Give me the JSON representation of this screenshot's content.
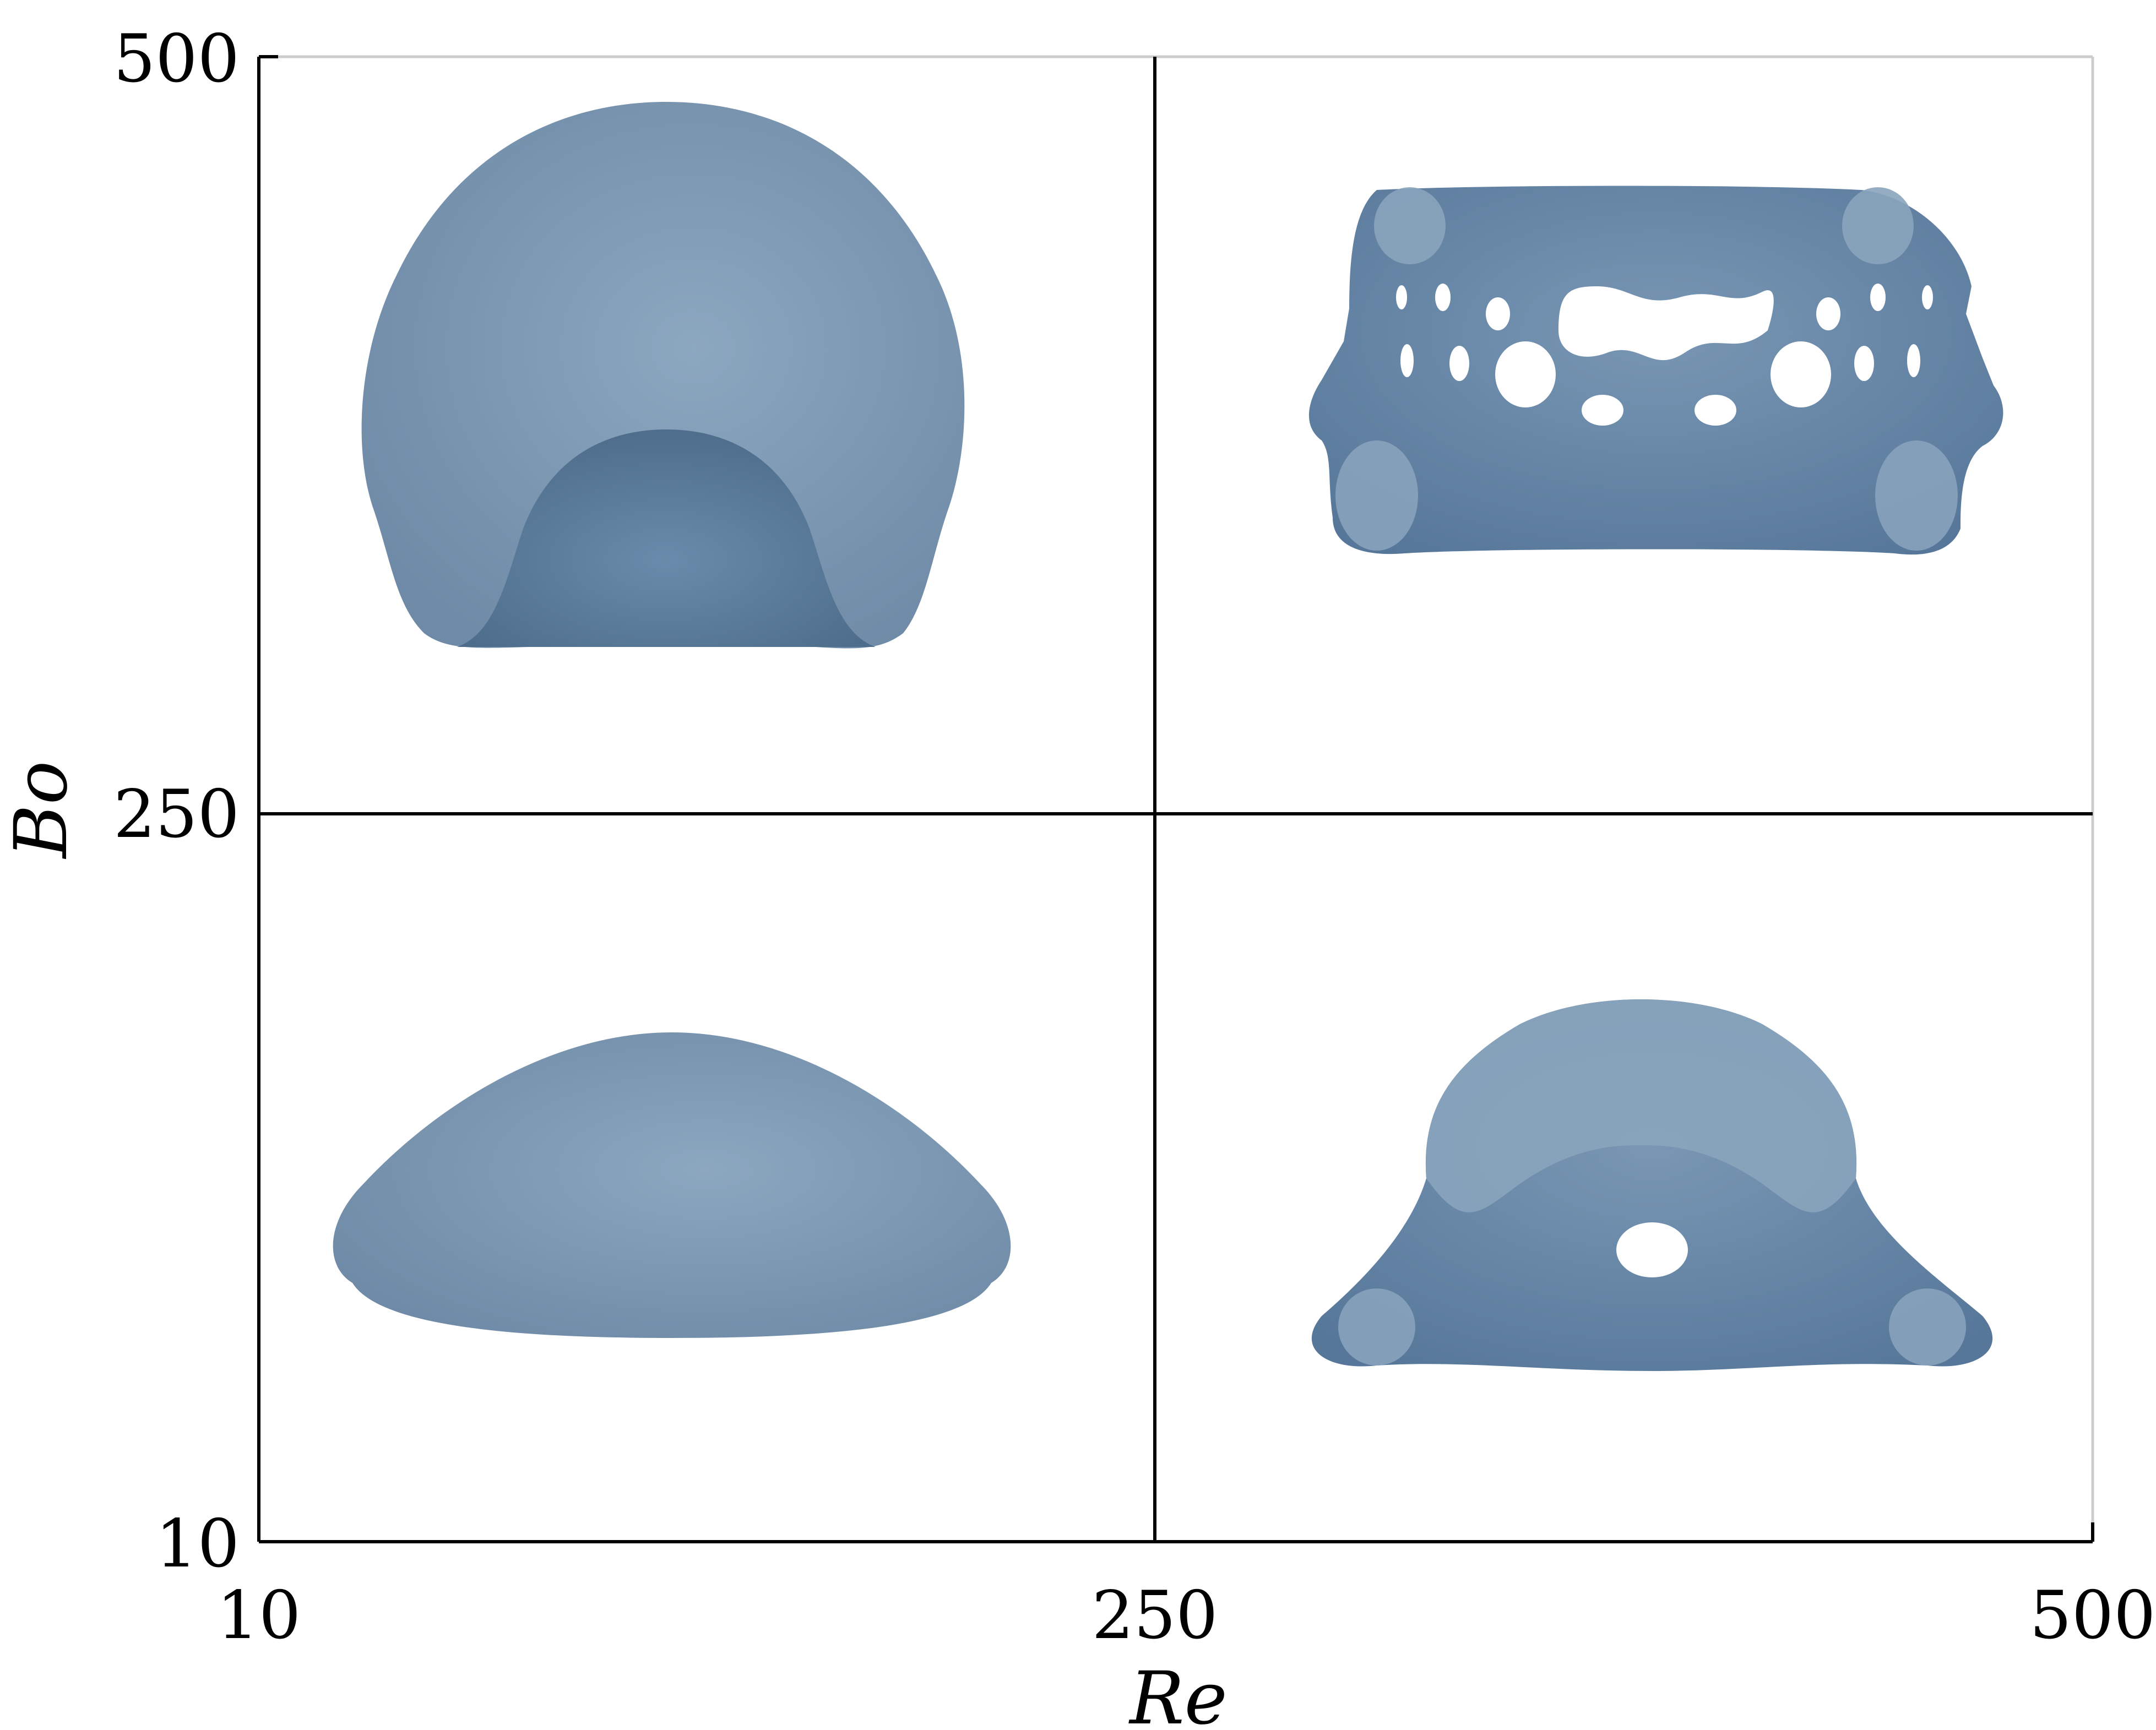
{
  "axes": {
    "x_label": "Re",
    "y_label": "Bo",
    "x_ticks": [
      "10",
      "250",
      "500"
    ],
    "y_ticks": [
      "500",
      "250",
      "10"
    ],
    "x_values": [
      10,
      250,
      500
    ],
    "y_values": [
      500,
      250,
      10
    ]
  },
  "panels": [
    {
      "name": "low-Re-high-Bo",
      "shape": "skirted-cap-bubble"
    },
    {
      "name": "high-Re-high-Bo",
      "shape": "perforated-toroidal-bubble"
    },
    {
      "name": "low-Re-low-Bo",
      "shape": "oblate-ellipsoidal-bubble"
    },
    {
      "name": "high-Re-low-Bo",
      "shape": "cap-bubble-with-central-hole"
    }
  ],
  "colors": {
    "bubble_light": "#8aa4bd",
    "bubble_dark": "#5c7c9c",
    "axis": "#000000",
    "frame": "#cccccc"
  }
}
